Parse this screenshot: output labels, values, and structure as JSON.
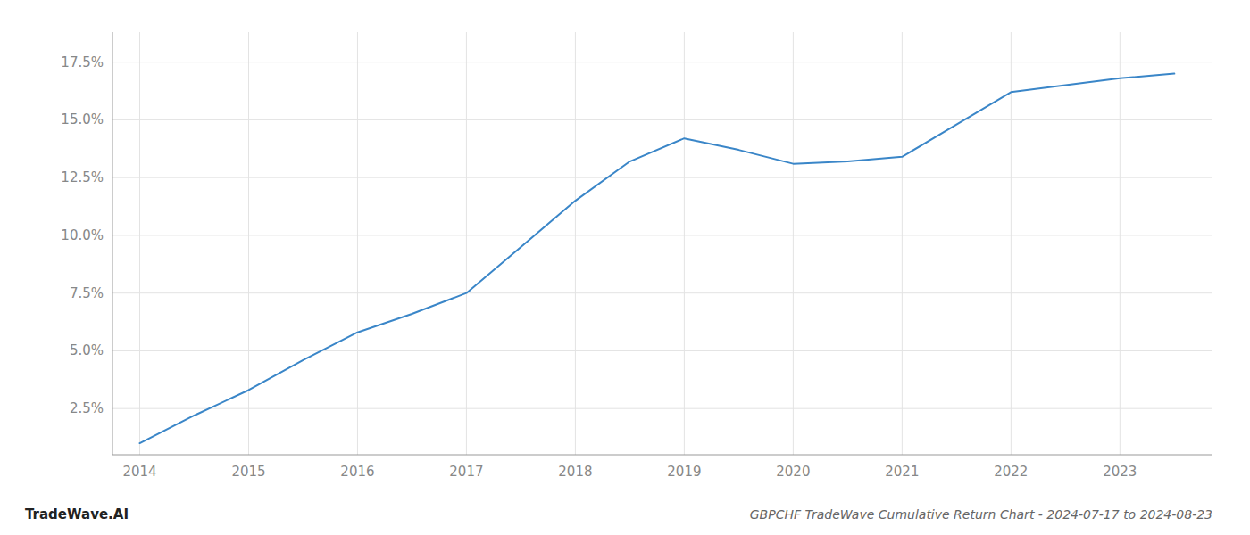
{
  "chart_data": {
    "type": "line",
    "title": "GBPCHF TradeWave Cumulative Return Chart - 2024-07-17 to 2024-08-23",
    "annotations": [
      "TradeWave.AI"
    ],
    "x": [
      2014.0,
      2014.5,
      2015.0,
      2015.5,
      2016.0,
      2016.5,
      2017.0,
      2017.5,
      2018.0,
      2018.5,
      2019.0,
      2019.5,
      2020.0,
      2020.5,
      2021.0,
      2021.5,
      2022.0,
      2022.5,
      2023.0,
      2023.5
    ],
    "values": [
      1.0,
      2.2,
      3.3,
      4.6,
      5.8,
      6.6,
      7.5,
      9.5,
      11.5,
      13.2,
      14.2,
      13.7,
      13.1,
      13.2,
      13.4,
      14.8,
      16.2,
      16.5,
      16.8,
      17.0
    ],
    "color": "#3a86c8",
    "xlim": [
      2013.75,
      2023.85
    ],
    "xticks": [
      2014,
      2015,
      2016,
      2017,
      2018,
      2019,
      2020,
      2021,
      2022,
      2023
    ],
    "ylim": [
      0.5,
      18.8
    ],
    "yticks": [
      {
        "value": 2.5,
        "label": "2.5%"
      },
      {
        "value": 5.0,
        "label": "5.0%"
      },
      {
        "value": 7.5,
        "label": "7.5%"
      },
      {
        "value": 10.0,
        "label": "10.0%"
      },
      {
        "value": 12.5,
        "label": "12.5%"
      },
      {
        "value": 15.0,
        "label": "15.0%"
      },
      {
        "value": 17.5,
        "label": "17.5%"
      }
    ],
    "grid": true
  }
}
